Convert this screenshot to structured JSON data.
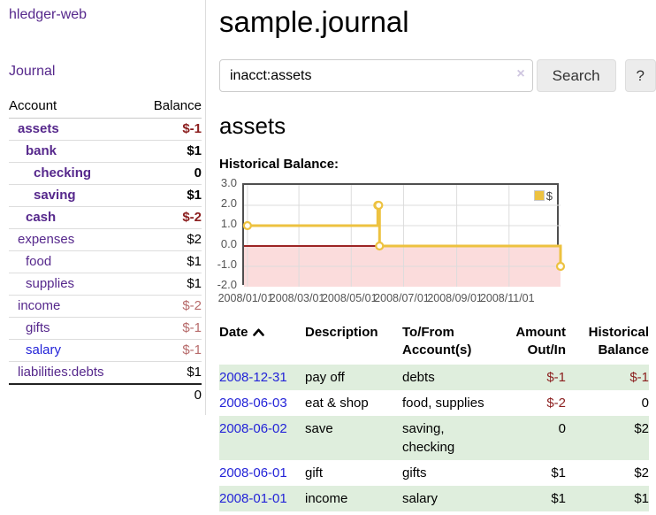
{
  "app": {
    "brand": "hledger-web",
    "nav": {
      "journal": "Journal"
    }
  },
  "sidebar": {
    "accounts": {
      "col_account": "Account",
      "col_balance": "Balance",
      "rows": [
        {
          "name": "assets",
          "balance": "$-1",
          "depth": 1,
          "cls": "match",
          "bcls": "match neg-dark"
        },
        {
          "name": "bank",
          "balance": "$1",
          "depth": 2,
          "cls": "match",
          "bcls": "match"
        },
        {
          "name": "checking",
          "balance": "0",
          "depth": 3,
          "cls": "match",
          "bcls": "match"
        },
        {
          "name": "saving",
          "balance": "$1",
          "depth": 3,
          "cls": "match",
          "bcls": "match"
        },
        {
          "name": "cash",
          "balance": "$-2",
          "depth": 2,
          "cls": "match",
          "bcls": "match neg-dark"
        },
        {
          "name": "expenses",
          "balance": "$2",
          "depth": 1,
          "cls": "",
          "bcls": ""
        },
        {
          "name": "food",
          "balance": "$1",
          "depth": 2,
          "cls": "",
          "bcls": ""
        },
        {
          "name": "supplies",
          "balance": "$1",
          "depth": 2,
          "cls": "",
          "bcls": ""
        },
        {
          "name": "income",
          "balance": "$-2",
          "depth": 1,
          "cls": "",
          "bcls": "neg-light"
        },
        {
          "name": "gifts",
          "balance": "$-1",
          "depth": 2,
          "cls": "",
          "bcls": "neg-light"
        },
        {
          "name": "salary",
          "balance": "$-1",
          "depth": 2,
          "cls": "unvisited",
          "bcls": "neg-light"
        },
        {
          "name": "liabilities:debts",
          "balance": "$1",
          "depth": 1,
          "cls": "",
          "bcls": ""
        }
      ],
      "total": "0"
    }
  },
  "header": {
    "title": "sample.journal"
  },
  "search": {
    "value": "inacct:assets",
    "clear_icon": "×",
    "button_label": "Search",
    "help_label": "?"
  },
  "account_page": {
    "heading": "assets",
    "chart_title": "Historical Balance:"
  },
  "chart_data": {
    "type": "line",
    "title": "Historical Balance",
    "step": true,
    "series": [
      {
        "name": "$",
        "color": "#edc240",
        "points": [
          [
            "2008-01-01",
            1
          ],
          [
            "2008-06-01",
            2
          ],
          [
            "2008-06-02",
            2
          ],
          [
            "2008-06-03",
            0
          ],
          [
            "2008-12-31",
            -1
          ]
        ]
      }
    ],
    "ylim": [
      -2,
      3
    ],
    "yticks": [
      "3.0",
      "2.0",
      "1.0",
      "0.0",
      "-1.0",
      "-2.0"
    ],
    "xticks": [
      "2008/01/01",
      "2008/03/01",
      "2008/05/01",
      "2008/07/01",
      "2008/09/01",
      "2008/11/01"
    ],
    "legend_position": "top-right",
    "legend_label": "$",
    "negative_region_color": "#fbdcdc",
    "zero_line_color": "#9c2424",
    "grid": true
  },
  "register_table": {
    "headers": {
      "date": "Date",
      "description": "Description",
      "accounts": "To/From Account(s)",
      "amount": "Amount Out/In",
      "balance": "Historical Balance"
    },
    "sort_icon": "chevron-up",
    "rows": [
      {
        "date": "2008-12-31",
        "desc": "pay off",
        "accts": "debts",
        "amount": "$-1",
        "acls": "neg",
        "balance": "$-1",
        "bcls": "neg"
      },
      {
        "date": "2008-06-03",
        "desc": "eat & shop",
        "accts": "food, supplies",
        "amount": "$-2",
        "acls": "neg",
        "balance": "0",
        "bcls": ""
      },
      {
        "date": "2008-06-02",
        "desc": "save",
        "accts": "saving, checking",
        "amount": "0",
        "acls": "",
        "balance": "$2",
        "bcls": ""
      },
      {
        "date": "2008-06-01",
        "desc": "gift",
        "accts": "gifts",
        "amount": "$1",
        "acls": "",
        "balance": "$2",
        "bcls": ""
      },
      {
        "date": "2008-01-01",
        "desc": "income",
        "accts": "salary",
        "amount": "$1",
        "acls": "",
        "balance": "$1",
        "bcls": ""
      }
    ]
  }
}
